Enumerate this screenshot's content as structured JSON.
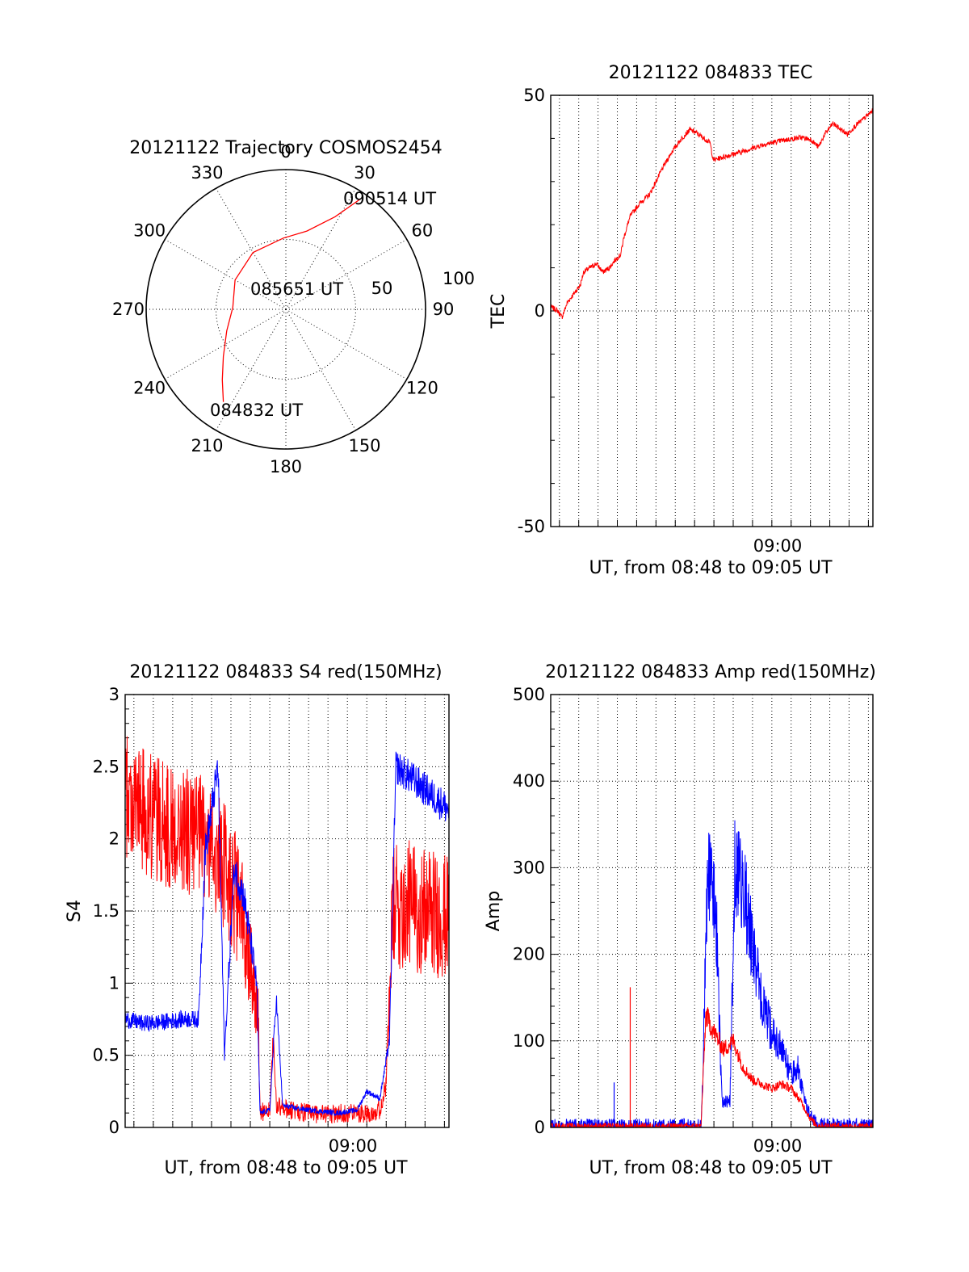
{
  "colors": {
    "red": "#ff0000",
    "blue": "#0000ff",
    "axis": "#000000"
  },
  "chart_data": [
    {
      "type": "polar",
      "title": "20121122 Trajectory COSMOS2454",
      "azimuth_labels": [
        "0",
        "30",
        "60",
        "90",
        "120",
        "150",
        "180",
        "210",
        "240",
        "270",
        "300",
        "330"
      ],
      "radius_labels": [
        "50",
        "100"
      ],
      "elevation_rings_deg": [
        0,
        50
      ],
      "trajectory_color": "red",
      "trajectory": [
        {
          "az": 214,
          "r": 80
        },
        {
          "az": 222,
          "r": 68
        },
        {
          "az": 233,
          "r": 56
        },
        {
          "az": 250,
          "r": 45
        },
        {
          "az": 272,
          "r": 38
        },
        {
          "az": 300,
          "r": 42
        },
        {
          "az": 330,
          "r": 47
        },
        {
          "az": 358,
          "r": 51
        },
        {
          "az": 15,
          "r": 58
        },
        {
          "az": 28,
          "r": 75
        },
        {
          "az": 34,
          "r": 95
        }
      ],
      "annotations": [
        {
          "text": "090514 UT",
          "az": 35,
          "r": 105
        },
        {
          "text": "085651 UT",
          "az": 0,
          "r": 0
        },
        {
          "text": "084832 UT",
          "az": 214,
          "r": 80
        }
      ]
    },
    {
      "type": "line",
      "title": "20121122 084833 TEC",
      "ylabel": "TEC",
      "xlabel": "UT, from 08:48 to 09:05 UT",
      "ylim": [
        -50,
        50
      ],
      "yticks": [
        "-50",
        "0",
        "50"
      ],
      "xlim": [
        "08:48:33",
        "09:05:14"
      ],
      "xtick_labels": [
        {
          "t": "09:00:00",
          "label": "09:00"
        }
      ],
      "series": [
        {
          "color": "red",
          "noise": 0.6,
          "points": [
            [
              "08:48:33",
              1
            ],
            [
              "08:48:55",
              0
            ],
            [
              "08:49:08",
              -1.5
            ],
            [
              "08:49:25",
              2
            ],
            [
              "08:49:45",
              4
            ],
            [
              "08:50:05",
              6
            ],
            [
              "08:50:15",
              9
            ],
            [
              "08:50:35",
              10
            ],
            [
              "08:50:55",
              11
            ],
            [
              "08:51:15",
              9
            ],
            [
              "08:51:35",
              10
            ],
            [
              "08:51:55",
              12
            ],
            [
              "08:52:10",
              13
            ],
            [
              "08:52:20",
              17
            ],
            [
              "08:52:40",
              22
            ],
            [
              "08:53:10",
              25
            ],
            [
              "08:53:40",
              27
            ],
            [
              "08:54:00",
              30
            ],
            [
              "08:54:20",
              33
            ],
            [
              "08:54:50",
              37
            ],
            [
              "08:55:20",
              40
            ],
            [
              "08:55:45",
              42
            ],
            [
              "08:56:00",
              41.5
            ],
            [
              "08:56:30",
              40
            ],
            [
              "08:56:48",
              39
            ],
            [
              "08:56:58",
              35
            ],
            [
              "08:57:20",
              35.5
            ],
            [
              "08:58:30",
              37
            ],
            [
              "08:59:30",
              38.5
            ],
            [
              "09:00:30",
              39.5
            ],
            [
              "09:01:30",
              40.2
            ],
            [
              "09:02:00",
              39.8
            ],
            [
              "09:02:25",
              38
            ],
            [
              "09:02:45",
              41
            ],
            [
              "09:03:10",
              43.5
            ],
            [
              "09:03:35",
              42
            ],
            [
              "09:03:55",
              41
            ],
            [
              "09:04:20",
              43
            ],
            [
              "09:04:45",
              44.5
            ],
            [
              "09:05:14",
              46.5
            ]
          ]
        }
      ]
    },
    {
      "type": "line",
      "title": "20121122 084833 S4 red(150MHz)",
      "ylabel": "S4",
      "xlabel": "UT, from 08:48 to 09:05 UT",
      "ylim": [
        0,
        3
      ],
      "yticks": [
        "0",
        "0.5",
        "1",
        "1.5",
        "2",
        "2.5",
        "3"
      ],
      "xlim": [
        "08:48:33",
        "09:05:14"
      ],
      "xtick_labels": [
        {
          "t": "09:00:00",
          "label": "09:00"
        }
      ],
      "series": [
        {
          "color": "red",
          "noise": 0.45,
          "points": [
            [
              "08:48:33",
              2.3
            ],
            [
              "08:49:30",
              2.2
            ],
            [
              "08:50:30",
              2.1
            ],
            [
              "08:51:30",
              2.05
            ],
            [
              "08:52:30",
              2.0
            ],
            [
              "08:53:30",
              1.85
            ],
            [
              "08:54:00",
              1.7
            ],
            [
              "08:54:40",
              1.4
            ],
            [
              "08:55:00",
              1.2
            ],
            [
              "08:55:15",
              0.9
            ],
            [
              "08:55:25",
              0.8
            ],
            [
              "08:55:30",
              0.1
            ],
            [
              "08:56:00",
              0.12
            ],
            [
              "08:56:10",
              0.6
            ],
            [
              "08:56:20",
              0.15
            ],
            [
              "08:57:00",
              0.12
            ],
            [
              "08:58:00",
              0.1
            ],
            [
              "08:59:00",
              0.09
            ],
            [
              "09:00:00",
              0.1
            ],
            [
              "09:01:00",
              0.1
            ],
            [
              "09:01:40",
              0.12
            ],
            [
              "09:02:00",
              0.3
            ],
            [
              "09:02:20",
              1.5
            ],
            [
              "09:03:00",
              1.55
            ],
            [
              "09:04:00",
              1.5
            ],
            [
              "09:05:14",
              1.45
            ]
          ]
        },
        {
          "color": "blue",
          "noise": 0.12,
          "points": [
            [
              "08:48:33",
              0.75
            ],
            [
              "08:49:30",
              0.72
            ],
            [
              "08:50:30",
              0.73
            ],
            [
              "08:51:30",
              0.75
            ],
            [
              "08:52:20",
              0.75
            ],
            [
              "08:52:40",
              1.9
            ],
            [
              "08:53:20",
              2.5
            ],
            [
              "08:53:40",
              0.5
            ],
            [
              "08:54:10",
              1.8
            ],
            [
              "08:54:40",
              1.6
            ],
            [
              "08:55:20",
              1.0
            ],
            [
              "08:55:30",
              0.1
            ],
            [
              "08:56:00",
              0.12
            ],
            [
              "08:56:20",
              0.9
            ],
            [
              "08:56:40",
              0.15
            ],
            [
              "08:58:00",
              0.12
            ],
            [
              "08:59:30",
              0.1
            ],
            [
              "09:00:30",
              0.12
            ],
            [
              "09:01:00",
              0.25
            ],
            [
              "09:01:40",
              0.2
            ],
            [
              "09:02:10",
              0.6
            ],
            [
              "09:02:30",
              2.5
            ],
            [
              "09:03:30",
              2.4
            ],
            [
              "09:05:14",
              2.2
            ]
          ]
        }
      ]
    },
    {
      "type": "line",
      "title": "20121122 084833 Amp red(150MHz)",
      "ylabel": "Amp",
      "xlabel": "UT, from 08:48 to 09:05 UT",
      "ylim": [
        0,
        500
      ],
      "yticks": [
        "0",
        "100",
        "200",
        "300",
        "400",
        "500"
      ],
      "xlim": [
        "08:48:33",
        "09:05:14"
      ],
      "xtick_labels": [
        {
          "t": "09:00:00",
          "label": "09:00"
        }
      ],
      "series": [
        {
          "color": "blue",
          "noise": 55,
          "points": [
            [
              "08:48:33",
              2
            ],
            [
              "08:56:20",
              2
            ],
            [
              "08:56:25",
              50
            ],
            [
              "08:56:40",
              300
            ],
            [
              "08:57:05",
              260
            ],
            [
              "08:57:25",
              30
            ],
            [
              "08:57:50",
              30
            ],
            [
              "08:58:05",
              300
            ],
            [
              "08:58:30",
              280
            ],
            [
              "08:59:00",
              210
            ],
            [
              "08:59:30",
              140
            ],
            [
              "09:00:00",
              110
            ],
            [
              "09:00:30",
              90
            ],
            [
              "09:01:00",
              60
            ],
            [
              "09:01:20",
              70
            ],
            [
              "09:01:50",
              20
            ],
            [
              "09:02:20",
              3
            ],
            [
              "09:05:14",
              2
            ]
          ]
        },
        {
          "color": "red",
          "noise": 28,
          "points": [
            [
              "08:48:33",
              1
            ],
            [
              "08:56:20",
              1
            ],
            [
              "08:56:35",
              130
            ],
            [
              "08:57:00",
              110
            ],
            [
              "08:57:30",
              90
            ],
            [
              "08:58:00",
              100
            ],
            [
              "08:58:30",
              70
            ],
            [
              "08:59:00",
              55
            ],
            [
              "08:59:30",
              50
            ],
            [
              "09:00:00",
              45
            ],
            [
              "09:00:30",
              50
            ],
            [
              "09:01:00",
              45
            ],
            [
              "09:01:30",
              30
            ],
            [
              "09:02:00",
              10
            ],
            [
              "09:02:20",
              2
            ],
            [
              "09:05:14",
              1
            ]
          ]
        }
      ],
      "spikes": [
        {
          "t": "08:51:50",
          "value": 52,
          "color": "blue"
        },
        {
          "t": "08:52:40",
          "value": 162,
          "color": "red"
        }
      ]
    }
  ]
}
